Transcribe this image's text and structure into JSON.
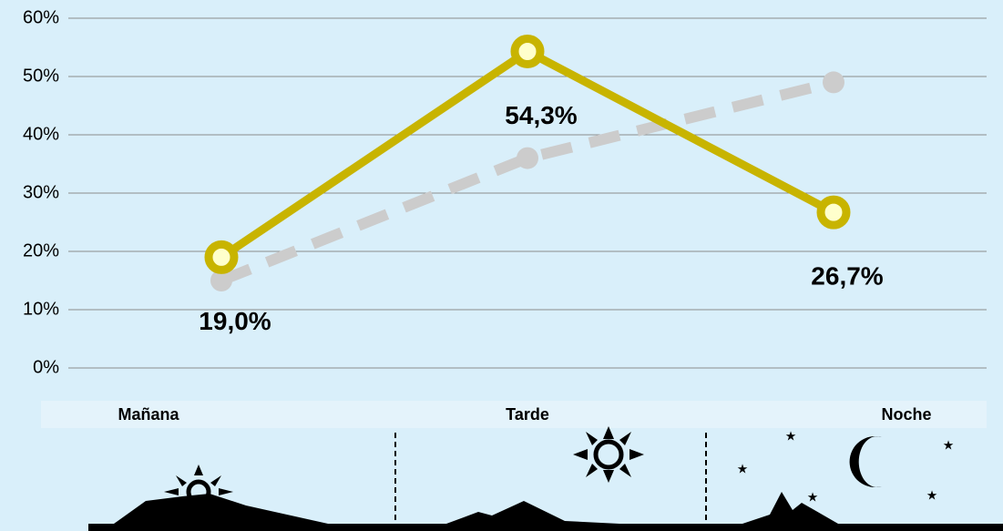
{
  "chart_data": {
    "type": "line",
    "categories": [
      "Mañana",
      "Tarde",
      "Noche"
    ],
    "series": [
      {
        "color": "#cccccc",
        "dashed": true,
        "values": [
          15,
          36,
          49
        ]
      },
      {
        "color": "#c8b400",
        "values": [
          19.0,
          54.3,
          26.7
        ],
        "value_labels": [
          "19,0%",
          "54,3%",
          "26,7%"
        ]
      }
    ],
    "ylim": [
      0,
      60
    ],
    "yticks": [
      {
        "value": 0,
        "label": "0%"
      },
      {
        "value": 10,
        "label": "10%"
      },
      {
        "value": 20,
        "label": "20%"
      },
      {
        "value": 30,
        "label": "30%"
      },
      {
        "value": 40,
        "label": "40%"
      },
      {
        "value": 50,
        "label": "50%"
      },
      {
        "value": 60,
        "label": "60%"
      }
    ],
    "grid": true
  }
}
